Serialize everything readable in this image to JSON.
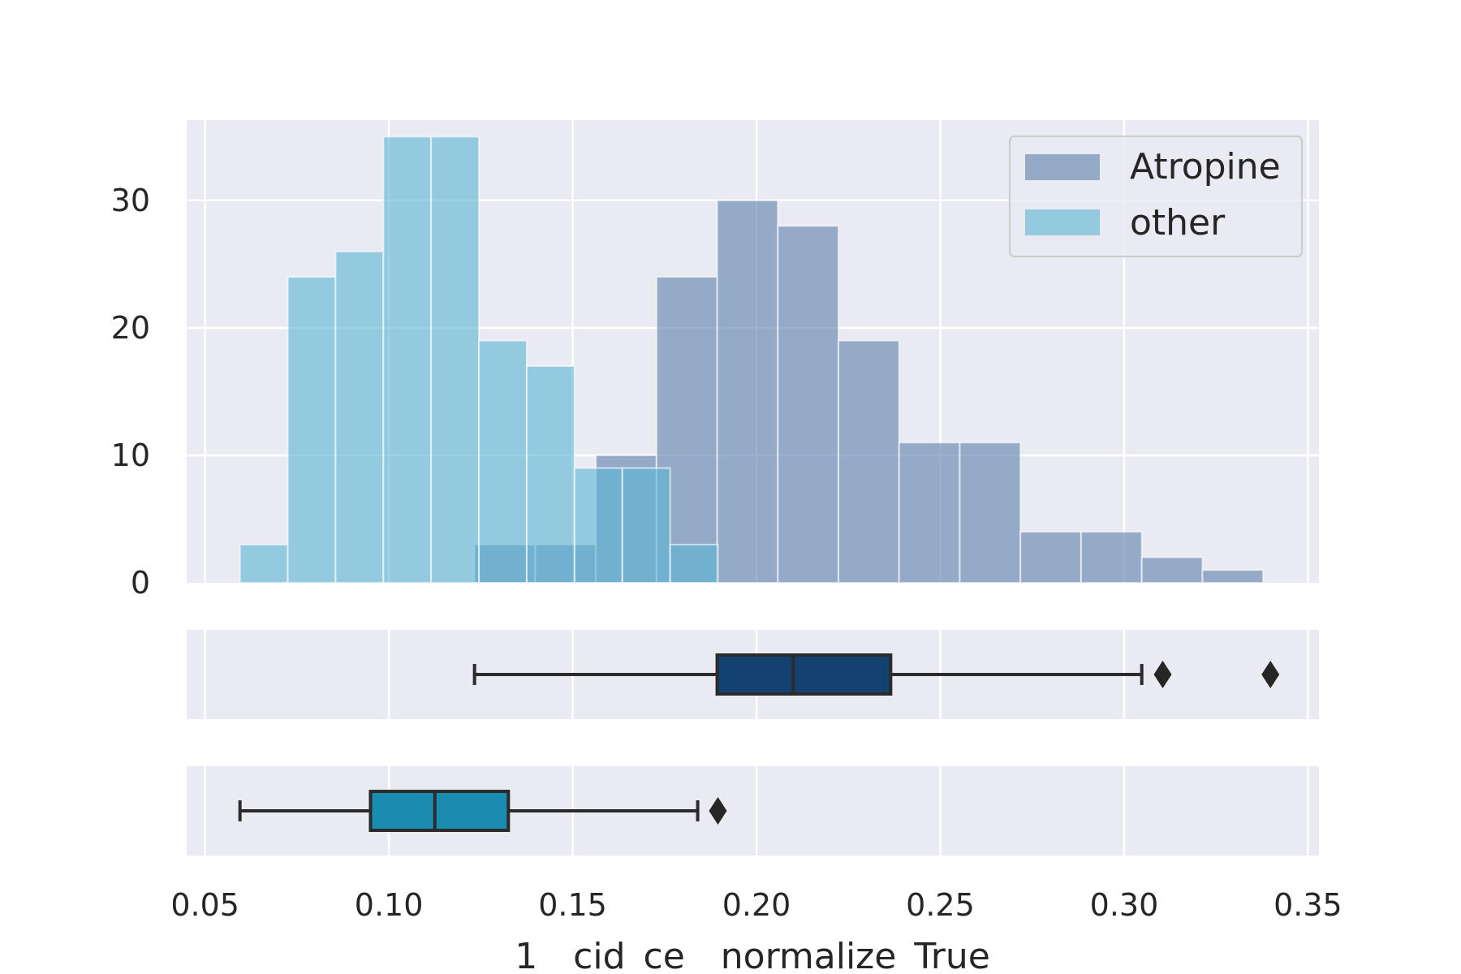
{
  "chart_data": {
    "type": "histogram-with-boxplots",
    "xlabel": "1__cid_ce__normalize_True",
    "xlim": [
      0.045,
      0.353
    ],
    "x_ticks": [
      "0.05",
      "0.10",
      "0.15",
      "0.20",
      "0.25",
      "0.30",
      "0.35"
    ],
    "x_tick_values": [
      0.05,
      0.1,
      0.15,
      0.2,
      0.25,
      0.3,
      0.35
    ],
    "ylim": [
      0,
      36.3
    ],
    "y_ticks": [
      "0",
      "10",
      "20",
      "30"
    ],
    "y_tick_values": [
      0,
      10,
      20,
      30
    ],
    "grid": true,
    "legend_position": "top-right",
    "series": [
      {
        "name": "Atropine",
        "color": "#5a7ea9",
        "bin_edges": [
          0.1233,
          0.1398,
          0.1563,
          0.1728,
          0.1893,
          0.2058,
          0.2223,
          0.2388,
          0.2553,
          0.2718,
          0.2883,
          0.3048,
          0.3213,
          0.3378
        ],
        "counts": [
          3,
          3,
          10,
          24,
          30,
          28,
          19,
          11,
          11,
          4,
          4,
          2,
          1
        ],
        "box": {
          "whisker_low": 0.1233,
          "q1": 0.1893,
          "median": 0.21,
          "q3": 0.2365,
          "whisker_high": 0.3048,
          "outliers": [
            0.3105,
            0.3398
          ],
          "color": "#134170"
        }
      },
      {
        "name": "other",
        "color": "#5ab4d4",
        "bin_edges": [
          0.0595,
          0.0725,
          0.0855,
          0.0985,
          0.1115,
          0.1245,
          0.1375,
          0.1505,
          0.1635,
          0.1765,
          0.1895
        ],
        "counts": [
          3,
          24,
          26,
          35,
          35,
          19,
          17,
          9,
          9,
          3
        ],
        "box": {
          "whisker_low": 0.0595,
          "q1": 0.095,
          "median": 0.1125,
          "q3": 0.1325,
          "whisker_high": 0.184,
          "outliers": [
            0.1895
          ],
          "color": "#1a8cb0"
        }
      }
    ]
  }
}
